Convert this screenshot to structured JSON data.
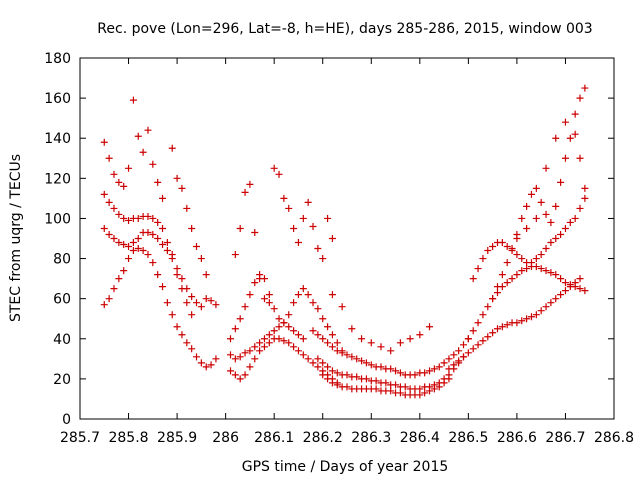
{
  "chart_data": {
    "type": "scatter",
    "title": "Rec. pove (Lon=296, Lat=-8, h=HE), days 285-286, 2015, window 003",
    "xlabel": "GPS time / Days of year 2015",
    "ylabel": "STEC from uqrg / TECUs",
    "xlim": [
      285.7,
      286.8
    ],
    "ylim": [
      0,
      180
    ],
    "xticks": [
      285.7,
      285.8,
      285.9,
      286,
      286.1,
      286.2,
      286.3,
      286.4,
      286.5,
      286.6,
      286.7,
      286.8
    ],
    "xtick_labels": [
      "285.7",
      "285.8",
      "285.9",
      "286",
      "286.1",
      "286.2",
      "286.3",
      "286.4",
      "286.5",
      "286.6",
      "286.7",
      "286.8"
    ],
    "yticks": [
      0,
      20,
      40,
      60,
      80,
      100,
      120,
      140,
      160,
      180
    ],
    "ytick_labels": [
      "0",
      "20",
      "40",
      "60",
      "80",
      "100",
      "120",
      "140",
      "160",
      "180"
    ],
    "grid": false,
    "legend": "none",
    "marker": "plus",
    "color": "#cc0000",
    "series": [
      {
        "x": [
          285.75,
          285.76,
          285.77,
          285.78,
          285.79,
          285.8,
          285.81,
          285.82,
          285.83,
          285.84,
          285.85,
          285.86,
          285.87
        ],
        "values": [
          138,
          130,
          122,
          118,
          116,
          125,
          159,
          141,
          133,
          144,
          127,
          118,
          110
        ]
      },
      {
        "x": [
          285.75,
          285.76,
          285.77,
          285.78,
          285.79,
          285.8,
          285.81,
          285.82,
          285.83,
          285.84,
          285.85,
          285.86,
          285.87,
          285.88,
          285.89,
          285.9,
          285.91,
          285.92,
          285.93
        ],
        "values": [
          112,
          108,
          105,
          102,
          100,
          99,
          100,
          100,
          101,
          101,
          100,
          98,
          95,
          88,
          82,
          72,
          65,
          58,
          52
        ]
      },
      {
        "x": [
          285.75,
          285.76,
          285.77,
          285.78,
          285.79,
          285.8,
          285.81,
          285.82,
          285.83,
          285.84,
          285.85,
          285.86,
          285.87,
          285.88,
          285.89,
          285.9,
          285.91,
          285.92,
          285.93,
          285.94,
          285.95,
          285.96,
          285.97,
          285.98
        ],
        "values": [
          95,
          92,
          90,
          88,
          87,
          86,
          88,
          90,
          93,
          93,
          92,
          90,
          87,
          84,
          80,
          75,
          70,
          65,
          61,
          58,
          56,
          60,
          59,
          57
        ]
      },
      {
        "x": [
          285.75,
          285.76,
          285.77,
          285.78,
          285.79,
          285.8,
          285.81,
          285.82,
          285.83,
          285.84,
          285.85,
          285.86,
          285.87,
          285.88,
          285.89,
          285.9,
          285.91,
          285.92,
          285.93,
          285.94,
          285.95,
          285.96,
          285.97,
          285.98
        ],
        "values": [
          57,
          60,
          65,
          70,
          74,
          80,
          84,
          85,
          84,
          82,
          78,
          72,
          66,
          58,
          52,
          46,
          42,
          38,
          35,
          31,
          28,
          26,
          27,
          30
        ]
      },
      {
        "x": [
          285.89,
          285.9,
          285.91,
          285.92,
          285.93,
          285.94,
          285.95,
          285.96
        ],
        "values": [
          135,
          120,
          115,
          105,
          95,
          86,
          80,
          72
        ]
      },
      {
        "x": [
          286.01,
          286.02,
          286.03,
          286.04,
          286.05,
          286.06,
          286.07,
          286.08,
          286.09,
          286.1,
          286.11,
          286.12,
          286.13,
          286.14,
          286.15,
          286.16
        ],
        "values": [
          40,
          45,
          50,
          56,
          62,
          68,
          72,
          70,
          62,
          55,
          50,
          48,
          46,
          44,
          42,
          40
        ]
      },
      {
        "x": [
          286.02,
          286.03,
          286.04,
          286.05,
          286.06,
          286.07,
          286.08,
          286.09,
          286.1,
          286.11,
          286.12,
          286.13,
          286.14,
          286.15,
          286.16,
          286.17,
          286.18,
          286.19,
          286.2,
          286.21,
          286.22
        ],
        "values": [
          82,
          95,
          113,
          117,
          93,
          70,
          60,
          58,
          125,
          122,
          110,
          105,
          95,
          88,
          100,
          108,
          96,
          85,
          80,
          100,
          90
        ]
      },
      {
        "x": [
          286.01,
          286.02,
          286.03,
          286.04,
          286.05,
          286.06,
          286.07,
          286.08,
          286.09,
          286.1,
          286.11,
          286.12,
          286.13,
          286.14,
          286.15,
          286.16,
          286.17,
          286.18,
          286.19,
          286.2,
          286.21,
          286.22,
          286.23,
          286.24
        ],
        "values": [
          32,
          30,
          31,
          33,
          34,
          36,
          38,
          40,
          42,
          44,
          46,
          48,
          52,
          58,
          62,
          65,
          62,
          58,
          55,
          50,
          46,
          42,
          38,
          34
        ]
      },
      {
        "x": [
          286.01,
          286.02,
          286.03,
          286.04,
          286.05,
          286.06,
          286.07,
          286.08,
          286.09,
          286.1,
          286.11,
          286.12,
          286.13,
          286.14,
          286.15,
          286.16,
          286.17,
          286.18,
          286.19,
          286.2,
          286.21,
          286.22,
          286.23
        ],
        "values": [
          24,
          22,
          20,
          22,
          26,
          30,
          34,
          36,
          38,
          40,
          40,
          39,
          38,
          36,
          34,
          32,
          30,
          28,
          26,
          24,
          22,
          20,
          18
        ]
      },
      {
        "x": [
          286.18,
          286.19,
          286.2,
          286.21,
          286.22,
          286.23,
          286.24,
          286.25,
          286.26,
          286.27,
          286.28,
          286.29,
          286.3,
          286.31,
          286.32,
          286.33,
          286.34,
          286.35,
          286.36,
          286.37,
          286.38,
          286.39,
          286.4,
          286.41,
          286.42,
          286.43,
          286.44,
          286.45,
          286.46,
          286.47,
          286.48,
          286.49,
          286.5
        ],
        "values": [
          44,
          42,
          40,
          38,
          36,
          34,
          33,
          32,
          31,
          30,
          29,
          28,
          27,
          26,
          26,
          25,
          25,
          24,
          23,
          22,
          22,
          22,
          23,
          23,
          24,
          25,
          26,
          28,
          30,
          32,
          34,
          37,
          40
        ]
      },
      {
        "x": [
          286.19,
          286.2,
          286.21,
          286.22,
          286.23,
          286.24,
          286.25,
          286.26,
          286.27,
          286.28,
          286.29,
          286.3,
          286.31,
          286.32,
          286.33,
          286.34,
          286.35,
          286.36,
          286.37,
          286.38,
          286.39,
          286.4,
          286.41,
          286.42,
          286.43,
          286.44,
          286.45,
          286.46,
          286.47,
          286.48,
          286.49
        ],
        "values": [
          30,
          28,
          26,
          24,
          23,
          22,
          22,
          21,
          21,
          20,
          20,
          19,
          19,
          18,
          18,
          17,
          17,
          16,
          16,
          15,
          15,
          15,
          16,
          16,
          17,
          18,
          20,
          22,
          25,
          28,
          31
        ]
      },
      {
        "x": [
          286.2,
          286.21,
          286.22,
          286.23,
          286.24,
          286.25,
          286.26,
          286.27,
          286.28,
          286.29,
          286.3,
          286.31,
          286.32,
          286.33,
          286.34,
          286.35,
          286.36,
          286.37,
          286.38,
          286.39,
          286.4,
          286.41,
          286.42,
          286.43,
          286.44,
          286.45,
          286.46
        ],
        "values": [
          22,
          20,
          18,
          17,
          16,
          16,
          15,
          15,
          15,
          15,
          15,
          15,
          14,
          14,
          14,
          13,
          13,
          12,
          12,
          12,
          12,
          13,
          14,
          15,
          16,
          18,
          20
        ]
      },
      {
        "x": [
          286.22,
          286.24,
          286.26,
          286.28,
          286.3,
          286.32,
          286.34,
          286.36,
          286.38,
          286.4,
          286.42
        ],
        "values": [
          62,
          56,
          45,
          40,
          38,
          36,
          34,
          38,
          40,
          42,
          46
        ]
      },
      {
        "x": [
          286.46,
          286.47,
          286.48,
          286.49,
          286.5,
          286.51,
          286.52,
          286.53,
          286.54,
          286.55,
          286.56,
          286.57,
          286.58,
          286.59,
          286.6,
          286.61,
          286.62,
          286.63,
          286.64,
          286.65,
          286.66,
          286.67,
          286.68,
          286.69,
          286.7,
          286.71,
          286.72,
          286.73
        ],
        "values": [
          25,
          27,
          29,
          31,
          33,
          35,
          37,
          39,
          41,
          43,
          45,
          46,
          47,
          48,
          48,
          49,
          50,
          51,
          52,
          54,
          56,
          58,
          60,
          62,
          64,
          66,
          68,
          70
        ]
      },
      {
        "x": [
          286.5,
          286.51,
          286.52,
          286.53,
          286.54,
          286.55,
          286.56,
          286.57,
          286.58,
          286.59,
          286.6,
          286.61,
          286.62,
          286.63,
          286.64,
          286.65,
          286.66,
          286.67,
          286.68,
          286.69,
          286.7,
          286.71,
          286.72,
          286.73,
          286.74
        ],
        "values": [
          40,
          44,
          48,
          52,
          56,
          60,
          63,
          66,
          68,
          70,
          72,
          74,
          75,
          76,
          76,
          75,
          74,
          73,
          72,
          70,
          68,
          67,
          66,
          65,
          64
        ]
      },
      {
        "x": [
          286.51,
          286.52,
          286.53,
          286.54,
          286.55,
          286.56,
          286.57,
          286.58,
          286.59,
          286.6,
          286.61,
          286.62,
          286.63,
          286.64,
          286.65,
          286.66,
          286.67,
          286.68,
          286.69,
          286.7,
          286.71,
          286.72,
          286.73,
          286.74
        ],
        "values": [
          70,
          75,
          80,
          84,
          86,
          88,
          88,
          86,
          84,
          82,
          80,
          78,
          78,
          80,
          82,
          85,
          88,
          90,
          92,
          95,
          98,
          100,
          105,
          110
        ]
      },
      {
        "x": [
          286.55,
          286.56,
          286.57,
          286.58,
          286.59,
          286.6,
          286.61,
          286.62,
          286.63,
          286.64,
          286.65,
          286.66,
          286.67,
          286.68,
          286.69,
          286.7,
          286.71,
          286.72,
          286.73,
          286.74
        ],
        "values": [
          60,
          66,
          72,
          78,
          85,
          92,
          100,
          106,
          112,
          115,
          108,
          102,
          98,
          106,
          118,
          130,
          140,
          152,
          160,
          165
        ]
      },
      {
        "x": [
          286.6,
          286.62,
          286.64,
          286.66,
          286.68,
          286.7,
          286.72,
          286.73,
          286.74
        ],
        "values": [
          90,
          95,
          100,
          125,
          140,
          148,
          142,
          130,
          115
        ]
      }
    ]
  }
}
